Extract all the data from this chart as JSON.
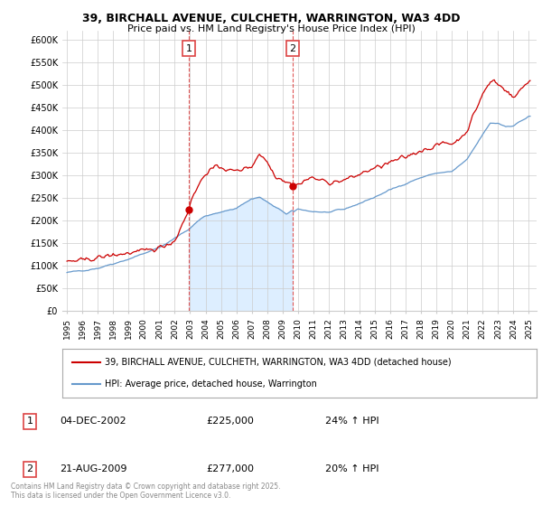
{
  "title_line1": "39, BIRCHALL AVENUE, CULCHETH, WARRINGTON, WA3 4DD",
  "title_line2": "Price paid vs. HM Land Registry's House Price Index (HPI)",
  "ylim": [
    0,
    620000
  ],
  "yticks": [
    0,
    50000,
    100000,
    150000,
    200000,
    250000,
    300000,
    350000,
    400000,
    450000,
    500000,
    550000,
    600000
  ],
  "ytick_labels": [
    "£0",
    "£50K",
    "£100K",
    "£150K",
    "£200K",
    "£250K",
    "£300K",
    "£350K",
    "£400K",
    "£450K",
    "£500K",
    "£550K",
    "£600K"
  ],
  "xlim_start": 1994.7,
  "xlim_end": 2025.5,
  "xtick_positions": [
    1995,
    1996,
    1997,
    1998,
    1999,
    2000,
    2001,
    2002,
    2003,
    2004,
    2005,
    2006,
    2007,
    2008,
    2009,
    2010,
    2011,
    2012,
    2013,
    2014,
    2015,
    2016,
    2017,
    2018,
    2019,
    2020,
    2021,
    2022,
    2023,
    2024,
    2025
  ],
  "xtick_labels": [
    "1995",
    "1996",
    "1997",
    "1998",
    "1999",
    "2000",
    "2001",
    "2002",
    "2003",
    "2004",
    "2005",
    "2006",
    "2007",
    "2008",
    "2009",
    "2010",
    "2011",
    "2012",
    "2013",
    "2014",
    "2015",
    "2016",
    "2017",
    "2018",
    "2019",
    "2020",
    "2021",
    "2022",
    "2023",
    "2024",
    "2025"
  ],
  "transaction1_date": 2002.92,
  "transaction1_price": 225000,
  "transaction1_label": "1",
  "transaction2_date": 2009.64,
  "transaction2_price": 277000,
  "transaction2_label": "2",
  "legend_label1": "39, BIRCHALL AVENUE, CULCHETH, WARRINGTON, WA3 4DD (detached house)",
  "legend_label2": "HPI: Average price, detached house, Warrington",
  "row1_label": "1",
  "row1_date": "04-DEC-2002",
  "row1_price": "£225,000",
  "row1_hpi": "24% ↑ HPI",
  "row2_label": "2",
  "row2_date": "21-AUG-2009",
  "row2_price": "£277,000",
  "row2_hpi": "20% ↑ HPI",
  "footer": "Contains HM Land Registry data © Crown copyright and database right 2025.\nThis data is licensed under the Open Government Licence v3.0.",
  "red_line_color": "#cc0000",
  "blue_line_color": "#6699cc",
  "blue_fill_color": "#ddeeff",
  "vline_color": "#dd4444",
  "background_color": "#ffffff",
  "grid_color": "#cccccc"
}
